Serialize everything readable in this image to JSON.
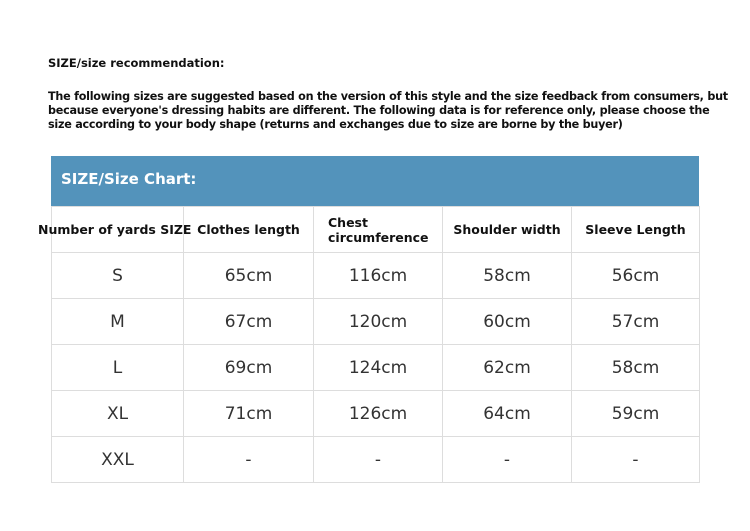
{
  "heading": "SIZE/size recommendation:",
  "description": "The following sizes are suggested based on the version of this style and the size feedback from consumers, but because everyone's dressing habits are different. The following data is for reference only, please choose the size according to your body shape (returns and exchanges due to size are borne by the buyer)",
  "chart_title": "SIZE/Size Chart:",
  "colors": {
    "banner": "#5393bb"
  },
  "columns": [
    "Number of yards SIZE",
    "Clothes length",
    "Chest circumference",
    "Shoulder width",
    "Sleeve Length"
  ],
  "rows": [
    [
      "S",
      "65cm",
      "116cm",
      "58cm",
      "56cm"
    ],
    [
      "M",
      "67cm",
      "120cm",
      "60cm",
      "57cm"
    ],
    [
      "L",
      "69cm",
      "124cm",
      "62cm",
      "58cm"
    ],
    [
      "XL",
      "71cm",
      "126cm",
      "64cm",
      "59cm"
    ],
    [
      "XXL",
      "-",
      "-",
      "-",
      "-"
    ]
  ]
}
